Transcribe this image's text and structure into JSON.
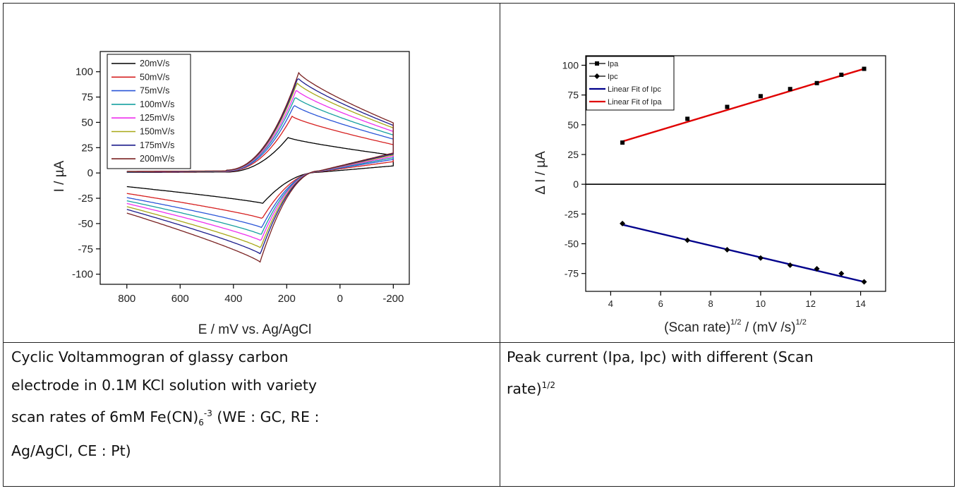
{
  "chart_data": [
    {
      "type": "line",
      "xlabel": "E / mV vs. Ag/AgCl",
      "ylabel": "I / µA",
      "xlim": [
        900,
        -260
      ],
      "ylim": [
        -110,
        120
      ],
      "x_axis_reversed": true,
      "xticks": [
        800,
        600,
        400,
        200,
        0,
        -200
      ],
      "yticks": [
        100,
        75,
        50,
        25,
        0,
        -25,
        -50,
        -75,
        -100
      ],
      "legend_position": "top-left",
      "series": [
        {
          "name": "20mV/s",
          "color": "#000000",
          "ipa": 35,
          "epa": 195,
          "ipc": -30,
          "epc": 290,
          "k": 1.0
        },
        {
          "name": "50mV/s",
          "color": "#d62020",
          "ipa": 56,
          "epa": 180,
          "ipc": -45,
          "epc": 292,
          "k": 1.58
        },
        {
          "name": "75mV/s",
          "color": "#2a55d8",
          "ipa": 67,
          "epa": 172,
          "ipc": -54,
          "epc": 294,
          "k": 1.94
        },
        {
          "name": "100mV/s",
          "color": "#17a0a0",
          "ipa": 75,
          "epa": 168,
          "ipc": -61,
          "epc": 296,
          "k": 2.24
        },
        {
          "name": "125mV/s",
          "color": "#ee30ee",
          "ipa": 82,
          "epa": 164,
          "ipc": -67,
          "epc": 297,
          "k": 2.5
        },
        {
          "name": "150mV/s",
          "color": "#a8a818",
          "ipa": 89,
          "epa": 161,
          "ipc": -74,
          "epc": 298,
          "k": 2.74
        },
        {
          "name": "175mV/s",
          "color": "#1c1c8c",
          "ipa": 94,
          "epa": 158,
          "ipc": -80,
          "epc": 299,
          "k": 2.96
        },
        {
          "name": "200mV/s",
          "color": "#7a2222",
          "ipa": 99,
          "epa": 155,
          "ipc": -88,
          "epc": 300,
          "k": 3.16
        }
      ]
    },
    {
      "type": "scatter",
      "xlabel_main": "(Scan rate)",
      "xlabel_sup1": "1/2",
      "xlabel_mid": " / (mV /s)",
      "xlabel_sup2": "1/2",
      "ylabel": "Δ I / µA",
      "xlim": [
        3,
        15
      ],
      "ylim": [
        -90,
        108
      ],
      "xticks": [
        4,
        6,
        8,
        10,
        12,
        14
      ],
      "yticks": [
        100,
        75,
        50,
        25,
        0,
        -25,
        -50,
        -75
      ],
      "legend_position": "top-left",
      "series": [
        {
          "name": "Ipa",
          "marker": "square",
          "color": "#000000",
          "x": [
            4.47,
            7.07,
            8.66,
            10.0,
            11.18,
            12.25,
            13.23,
            14.14
          ],
          "y": [
            35,
            55,
            65,
            74,
            80,
            85,
            92,
            97
          ]
        },
        {
          "name": "Ipc",
          "marker": "diamond",
          "color": "#000000",
          "x": [
            4.47,
            7.07,
            8.66,
            10.0,
            11.18,
            12.25,
            13.23,
            14.14
          ],
          "y": [
            -33,
            -47,
            -55,
            -62,
            -68,
            -71,
            -75,
            -82
          ]
        }
      ],
      "fits": [
        {
          "name": "Linear Fit of Ipc",
          "color": "#00008b",
          "x": [
            4.47,
            14.14
          ],
          "y": [
            -34,
            -82
          ]
        },
        {
          "name": "Linear Fit of Ipa",
          "color": "#e00000",
          "x": [
            4.47,
            14.14
          ],
          "y": [
            36,
            97
          ]
        }
      ]
    }
  ],
  "captions": {
    "left": {
      "line1": "Cyclic Voltammogran of glassy carbon",
      "line2": "electrode in 0.1M KCl solution with variety",
      "line3_pre": "scan rates of 6mM Fe(CN)",
      "line3_sub": "6",
      "line3_sup": "-3",
      "line3_post": " (WE : GC, RE :",
      "line4": "Ag/AgCl, CE : Pt)"
    },
    "right": {
      "line1": "Peak current (Ipa, Ipc) with different (Scan",
      "line2_pre": "rate)",
      "line2_sup": "1/2"
    }
  }
}
